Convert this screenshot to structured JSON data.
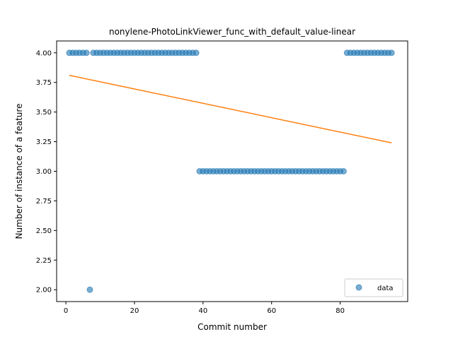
{
  "chart_data": {
    "type": "scatter",
    "title": "nonylene-PhotoLinkViewer_func_with_default_value-linear",
    "xlabel": "Commit number",
    "ylabel": "Number of instance of a feature",
    "xlim": [
      -2.7,
      99.7
    ],
    "ylim": [
      1.9,
      4.1
    ],
    "xticks": [
      0,
      20,
      40,
      60,
      80
    ],
    "xtick_labels": [
      "0",
      "20",
      "40",
      "60",
      "80"
    ],
    "yticks": [
      2.0,
      2.25,
      2.5,
      2.75,
      3.0,
      3.25,
      3.5,
      3.75,
      4.0
    ],
    "ytick_labels": [
      "2.00",
      "2.25",
      "2.50",
      "2.75",
      "3.00",
      "3.25",
      "3.50",
      "3.75",
      "4.00"
    ],
    "grid": false,
    "legend": {
      "position": "lower-right",
      "entries": [
        "data"
      ]
    },
    "colors": {
      "data": "#1f77b4",
      "fit": "#ff7f0e"
    },
    "series": [
      {
        "name": "data",
        "kind": "scatter",
        "x": [
          1,
          2,
          3,
          4,
          5,
          6,
          7,
          8,
          9,
          10,
          11,
          12,
          13,
          14,
          15,
          16,
          17,
          18,
          19,
          20,
          21,
          22,
          23,
          24,
          25,
          26,
          27,
          28,
          29,
          30,
          31,
          32,
          33,
          34,
          35,
          36,
          37,
          38,
          39,
          40,
          41,
          42,
          43,
          44,
          45,
          46,
          47,
          48,
          49,
          50,
          51,
          52,
          53,
          54,
          55,
          56,
          57,
          58,
          59,
          60,
          61,
          62,
          63,
          64,
          65,
          66,
          67,
          68,
          69,
          70,
          71,
          72,
          73,
          74,
          75,
          76,
          77,
          78,
          79,
          80,
          81,
          82,
          83,
          84,
          85,
          86,
          87,
          88,
          89,
          90,
          91,
          92,
          93,
          94,
          95
        ],
        "y": [
          4,
          4,
          4,
          4,
          4,
          4,
          2,
          4,
          4,
          4,
          4,
          4,
          4,
          4,
          4,
          4,
          4,
          4,
          4,
          4,
          4,
          4,
          4,
          4,
          4,
          4,
          4,
          4,
          4,
          4,
          4,
          4,
          4,
          4,
          4,
          4,
          4,
          4,
          3,
          3,
          3,
          3,
          3,
          3,
          3,
          3,
          3,
          3,
          3,
          3,
          3,
          3,
          3,
          3,
          3,
          3,
          3,
          3,
          3,
          3,
          3,
          3,
          3,
          3,
          3,
          3,
          3,
          3,
          3,
          3,
          3,
          3,
          3,
          3,
          3,
          3,
          3,
          3,
          3,
          3,
          3,
          4,
          4,
          4,
          4,
          4,
          4,
          4,
          4,
          4,
          4,
          4,
          4,
          4,
          4
        ]
      },
      {
        "kind": "line",
        "x": [
          1,
          95
        ],
        "y": [
          3.81,
          3.24
        ]
      }
    ]
  }
}
